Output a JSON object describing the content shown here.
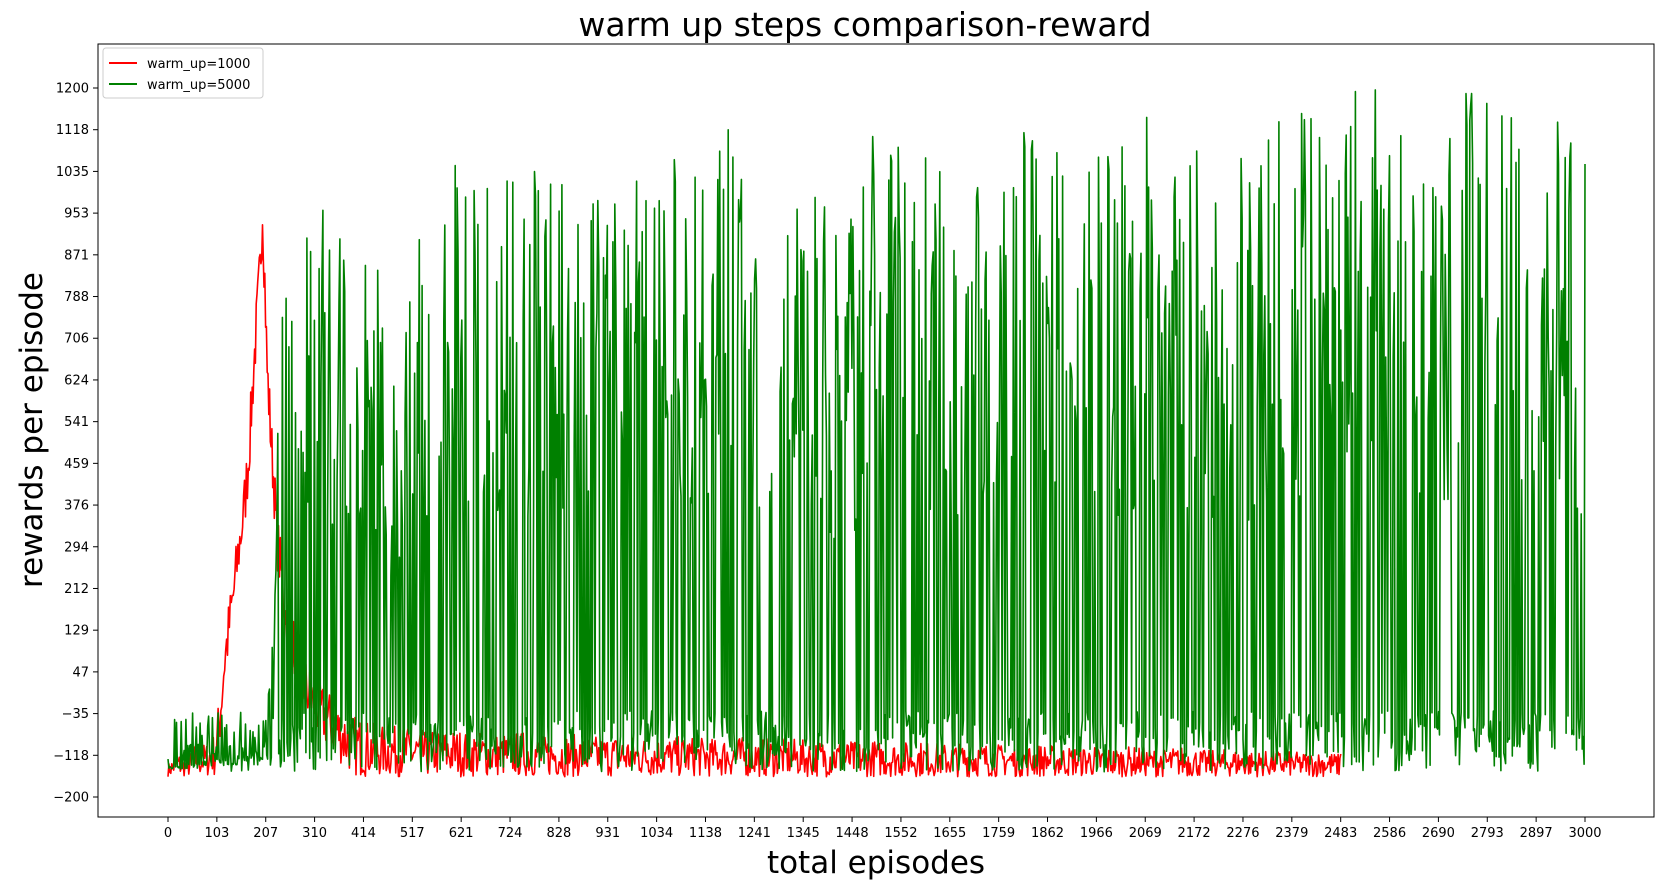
{
  "chart_data": {
    "type": "line",
    "title": "warm up steps comparison-reward",
    "xlabel": "total episodes",
    "ylabel": "rewards per episode",
    "xlim": [
      0,
      3000
    ],
    "ylim": [
      -200,
      1200
    ],
    "x_ticks": [
      "0",
      "103",
      "207",
      "310",
      "414",
      "517",
      "621",
      "724",
      "828",
      "931",
      "1034",
      "1138",
      "1241",
      "1345",
      "1448",
      "1552",
      "1655",
      "1759",
      "1862",
      "1966",
      "2069",
      "2172",
      "2276",
      "2379",
      "2483",
      "2586",
      "2690",
      "2793",
      "2897",
      "3000"
    ],
    "y_ticks": [
      "-200",
      "-118",
      "-35",
      "47",
      "129",
      "212",
      "294",
      "376",
      "459",
      "541",
      "624",
      "706",
      "788",
      "871",
      "953",
      "1035",
      "1118",
      "1200"
    ],
    "grid": false,
    "legend_position": "top-left",
    "series": [
      {
        "name": "warm_up=1000",
        "color": "#ff0000",
        "x": [
          0,
          20,
          40,
          60,
          80,
          100,
          110,
          120,
          130,
          140,
          150,
          160,
          170,
          175,
          180,
          185,
          190,
          195,
          200,
          205,
          210,
          215,
          220,
          225,
          230,
          240,
          250,
          260,
          270,
          280,
          290,
          300,
          320,
          340,
          360,
          380,
          400,
          450,
          500,
          550,
          600,
          650,
          700,
          750,
          800,
          850,
          900,
          950,
          1000,
          1050,
          1100,
          1150,
          1200,
          1250,
          1300,
          1350,
          1400,
          1450,
          1500,
          1550,
          1600,
          1650,
          1700,
          1750,
          1800,
          1850,
          1900,
          1950,
          2000,
          2050,
          2100,
          2150,
          2200,
          2250,
          2300,
          2350,
          2400,
          2450,
          2483
        ],
        "values": [
          -135,
          -110,
          -125,
          -90,
          -95,
          -70,
          20,
          130,
          200,
          270,
          350,
          420,
          520,
          600,
          680,
          760,
          830,
          900,
          1020,
          880,
          700,
          620,
          540,
          470,
          380,
          300,
          220,
          180,
          140,
          100,
          80,
          60,
          30,
          10,
          -10,
          -30,
          -40,
          -60,
          -60,
          -70,
          -65,
          -70,
          -75,
          -70,
          -80,
          -75,
          -80,
          -78,
          -80,
          -82,
          -80,
          -85,
          -80,
          -85,
          -82,
          -88,
          -85,
          -90,
          -88,
          -92,
          -90,
          -95,
          -92,
          -95,
          -98,
          -95,
          -100,
          -98,
          -102,
          -100,
          -105,
          -100,
          -108,
          -105,
          -110,
          -108,
          -112,
          -110,
          -115
        ]
      },
      {
        "name": "warm_up=5000",
        "color": "#008000",
        "x": [
          0,
          50,
          100,
          150,
          200,
          207,
          250,
          300,
          350,
          400,
          450,
          500,
          550,
          600,
          650,
          700,
          750,
          800,
          850,
          900,
          950,
          1000,
          1050,
          1100,
          1150,
          1200,
          1250,
          1300,
          1350,
          1400,
          1450,
          1500,
          1550,
          1600,
          1650,
          1700,
          1750,
          1800,
          1850,
          1900,
          1950,
          2000,
          2050,
          2100,
          2150,
          2200,
          2250,
          2300,
          2350,
          2400,
          2450,
          2483,
          2500,
          2550,
          2600,
          2650,
          2700,
          2750,
          2800,
          2850,
          2900,
          2950,
          3000
        ],
        "values": [
          -140,
          -135,
          -125,
          -115,
          -100,
          -40,
          1020,
          1170,
          1030,
          1000,
          820,
          750,
          1050,
          1080,
          1010,
          1100,
          1020,
          1090,
          1020,
          1080,
          1100,
          1140,
          1110,
          1090,
          1070,
          1140,
          1090,
          1010,
          1000,
          960,
          1000,
          1130,
          1090,
          1110,
          1030,
          1080,
          1010,
          1100,
          1150,
          1040,
          1130,
          1050,
          1160,
          1120,
          1130,
          1100,
          1090,
          1060,
          1180,
          1170,
          1160,
          1080,
          1210,
          1200,
          1190,
          1180,
          1190,
          1200,
          1190,
          1180,
          1170,
          1180,
          1050
        ]
      }
    ]
  }
}
